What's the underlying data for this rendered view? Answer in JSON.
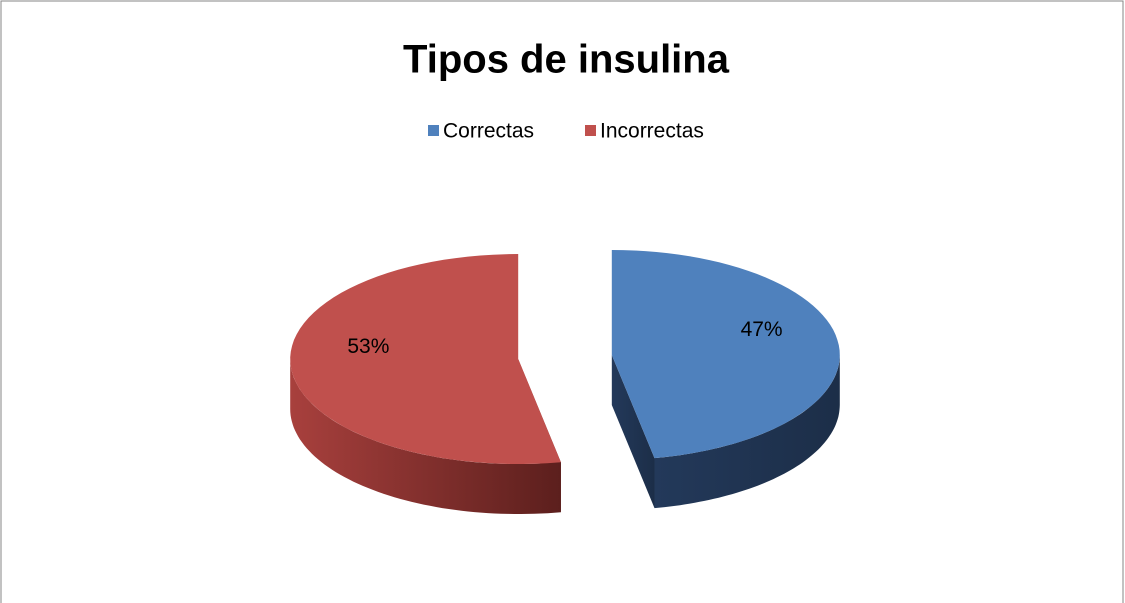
{
  "chart_data": {
    "type": "pie",
    "title": "Tipos de insulina",
    "categories": [
      "Correctas",
      "Incorrectas"
    ],
    "values": [
      47,
      53
    ],
    "value_labels": [
      "47%",
      "53%"
    ],
    "colors": [
      "#4f81bd",
      "#c0504d"
    ],
    "legend": "top"
  }
}
